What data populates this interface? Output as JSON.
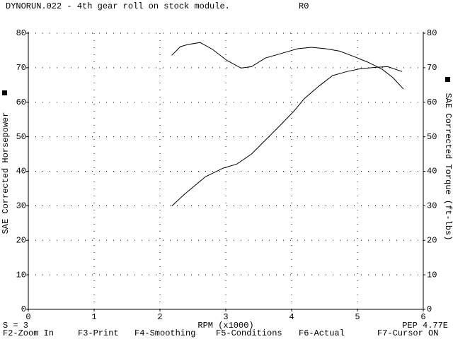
{
  "chart_data": {
    "type": "line",
    "title": "DYNORUN.022 - 4th gear roll on stock module.",
    "run_label": "R0",
    "xlabel": "RPM (x1000)",
    "ylabel": "SAE Corrected Horsepower",
    "y2label": "SAE Corrected Torque (ft-lbs)",
    "xlim": [
      0,
      6
    ],
    "xticks": [
      0,
      1,
      2,
      3,
      4,
      5,
      6
    ],
    "ylim": [
      0,
      80
    ],
    "yticks": [
      0,
      10,
      20,
      30,
      40,
      50,
      60,
      70,
      80
    ],
    "y2lim": [
      0,
      80
    ],
    "y2ticks": [
      0,
      10,
      20,
      30,
      40,
      50,
      60,
      70,
      80
    ],
    "grid": true,
    "series": [
      {
        "color": "#000000",
        "axis": "y",
        "x": [
          2.18,
          2.37,
          2.69,
          2.96,
          3.17,
          3.39,
          3.6,
          3.82,
          4.03,
          4.19,
          4.41,
          4.62,
          4.84,
          5.05,
          5.27,
          5.46,
          5.68
        ],
        "values": [
          29.9,
          33.3,
          38.4,
          40.9,
          42.1,
          45,
          49,
          53.2,
          57.3,
          61,
          64.6,
          67.7,
          68.9,
          69.7,
          70.1,
          70.3,
          68.9
        ]
      },
      {
        "color": "#000000",
        "axis": "y2",
        "x": [
          2.18,
          2.31,
          2.42,
          2.61,
          2.8,
          3.01,
          3.23,
          3.39,
          3.6,
          3.82,
          4.09,
          4.3,
          4.52,
          4.73,
          4.95,
          5.16,
          5.38,
          5.54,
          5.7
        ],
        "values": [
          73.6,
          76.1,
          76.7,
          77.3,
          75.3,
          72.2,
          69.9,
          70.3,
          72.8,
          74,
          75.5,
          75.9,
          75.5,
          74.8,
          73.2,
          71.6,
          69.5,
          67.1,
          63.8
        ]
      }
    ],
    "status": "S = 3",
    "pep": "PEP 4.77E",
    "menu": [
      "F2-Zoom In",
      "F3-Print",
      "F4-Smoothing",
      "F5-Conditions",
      "F6-Actual",
      "F7-Cursor ON"
    ]
  }
}
